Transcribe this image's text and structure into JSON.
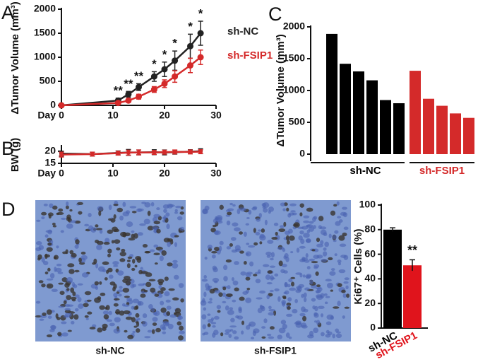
{
  "chart_data": [
    {
      "type": "line",
      "panel": "A",
      "y_label": "ΔTumor Volume (mm³)",
      "x_label": "Day",
      "x": [
        0,
        11,
        13,
        15,
        18,
        20,
        22,
        25,
        27
      ],
      "series": [
        {
          "name": "sh-NC",
          "color": "#222222",
          "values": [
            0,
            100,
            230,
            380,
            600,
            750,
            930,
            1230,
            1500
          ],
          "errors": [
            0,
            50,
            60,
            70,
            100,
            150,
            200,
            250,
            250
          ]
        },
        {
          "name": "sh-FSIP1",
          "color": "#d42a2a",
          "values": [
            0,
            50,
            100,
            180,
            330,
            450,
            600,
            830,
            1000
          ],
          "errors": [
            0,
            30,
            40,
            50,
            60,
            80,
            120,
            150,
            150
          ]
        }
      ],
      "xlim": [
        0,
        30
      ],
      "xticks": [
        0,
        10,
        20,
        30
      ],
      "ylim": [
        0,
        2000
      ],
      "yticks": [
        0,
        500,
        1000,
        1500,
        2000
      ],
      "annotations": [
        {
          "x": 11,
          "label": "**"
        },
        {
          "x": 13,
          "label": "**"
        },
        {
          "x": 15,
          "label": "**"
        },
        {
          "x": 18,
          "label": "*"
        },
        {
          "x": 20,
          "label": "*"
        },
        {
          "x": 22,
          "label": "*"
        },
        {
          "x": 25,
          "label": "*"
        },
        {
          "x": 27,
          "label": "*"
        }
      ],
      "legend": "right"
    },
    {
      "type": "line",
      "panel": "B",
      "y_label": "BW (g)",
      "x_label": "Day",
      "x": [
        0,
        6,
        11,
        13,
        15,
        18,
        20,
        22,
        25,
        27
      ],
      "series": [
        {
          "name": "sh-NC",
          "color": "#222222",
          "values": [
            19,
            18.8,
            19.3,
            19.5,
            19.5,
            19.6,
            19.5,
            19.6,
            19.8,
            20
          ],
          "errors": [
            1,
            0.8,
            0.8,
            1.2,
            1,
            1,
            1,
            0.8,
            0.8,
            1
          ]
        },
        {
          "name": "sh-FSIP1",
          "color": "#d42a2a",
          "values": [
            18.6,
            18.8,
            19.2,
            19.4,
            19.5,
            19.5,
            19.6,
            19.7,
            19.7,
            19.8
          ],
          "errors": [
            1,
            0.8,
            0.8,
            1,
            1,
            0.8,
            0.8,
            0.8,
            0.8,
            0.8
          ]
        }
      ],
      "xlim": [
        0,
        30
      ],
      "xticks": [
        0,
        10,
        20,
        30
      ],
      "ylim": [
        15,
        22
      ],
      "yticks": [
        15,
        20
      ]
    },
    {
      "type": "bar",
      "panel": "C",
      "y_label": "ΔTumor Volume (mm³)",
      "categories": [
        null,
        null,
        null,
        null,
        null,
        null,
        null,
        null,
        null,
        null,
        null
      ],
      "series": [
        {
          "name": "sh-NC",
          "color": "#000000",
          "values": [
            1890,
            1420,
            1300,
            1160,
            850,
            800,
            null,
            null,
            null,
            null,
            null
          ]
        },
        {
          "name": "sh-FSIP1",
          "color": "#d42a2a",
          "values": [
            null,
            null,
            null,
            null,
            null,
            null,
            1310,
            870,
            760,
            640,
            570
          ]
        }
      ],
      "ylim": [
        0,
        2000
      ],
      "yticks": [
        0,
        500,
        1000,
        1500,
        2000
      ]
    },
    {
      "type": "errbar",
      "panel": "D",
      "y_label": "Ki67⁺ Cells (%)",
      "categories": [
        "sh-NC",
        "sh-FSIP1"
      ],
      "values": [
        80,
        51
      ],
      "errors": [
        1.5,
        4.5
      ],
      "colors": [
        "#000000",
        "#e0141c"
      ],
      "ylim": [
        0,
        100
      ],
      "yticks": [
        0,
        20,
        40,
        60,
        80,
        100
      ],
      "annotations": [
        {
          "x": "sh-FSIP1",
          "label": "**"
        }
      ],
      "image_captions": [
        "sh-NC",
        "sh-FSIP1"
      ]
    }
  ]
}
